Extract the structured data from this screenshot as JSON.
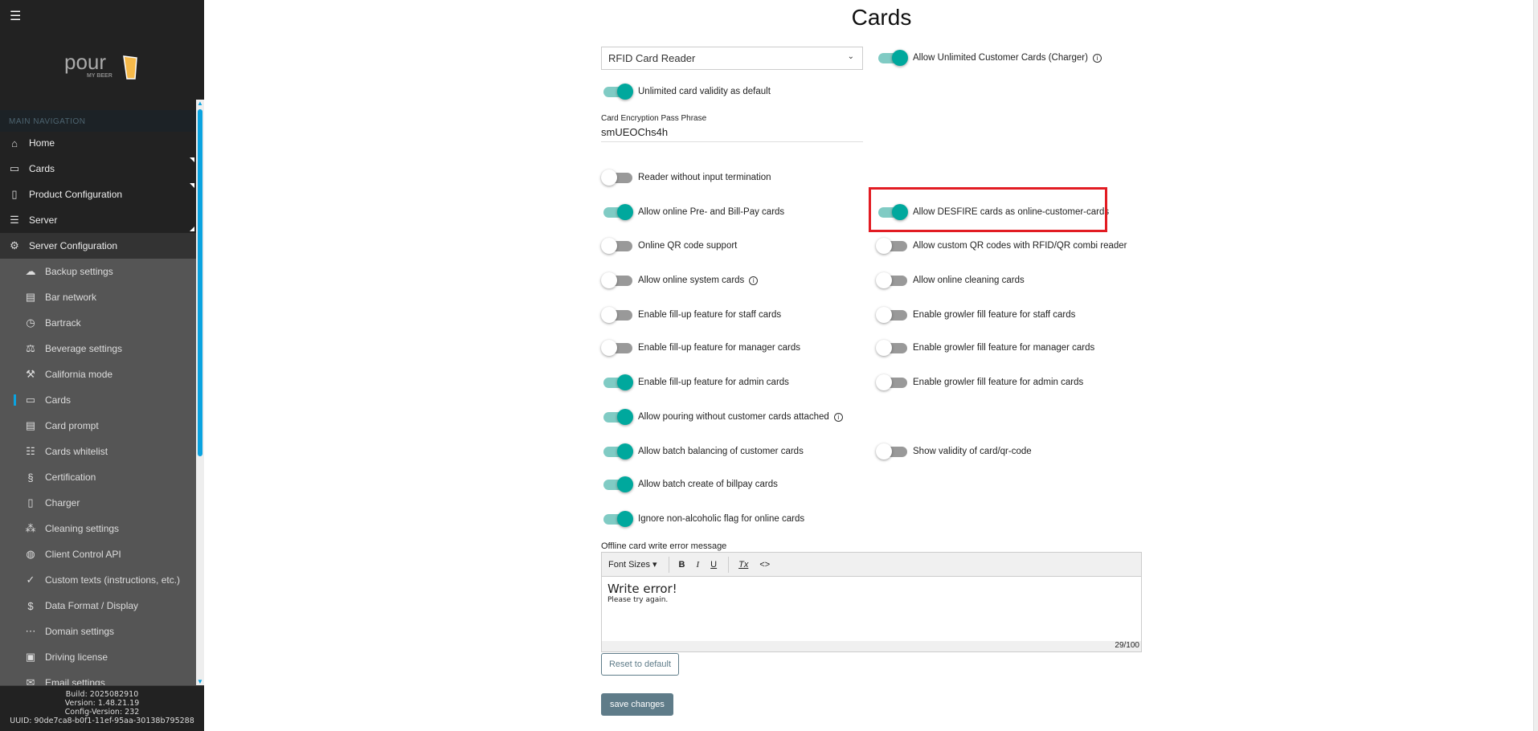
{
  "sidebar": {
    "menu_icon": "hamburger-icon",
    "logo_text": "pour MY BEER",
    "nav_header": "MAIN NAVIGATION",
    "items": [
      {
        "label": "Home",
        "icon": "⌂",
        "type": "top"
      },
      {
        "label": "Cards",
        "icon": "▭",
        "type": "top",
        "tri": "down"
      },
      {
        "label": "Product Configuration",
        "icon": "▯",
        "type": "top",
        "tri": "down"
      },
      {
        "label": "Server",
        "icon": "☰",
        "type": "top",
        "tri": "up"
      },
      {
        "label": "Server Configuration",
        "icon": "⚙",
        "type": "open"
      },
      {
        "label": "Backup settings",
        "icon": "☁",
        "type": "sub"
      },
      {
        "label": "Bar network",
        "icon": "▤",
        "type": "sub"
      },
      {
        "label": "Bartrack",
        "icon": "◷",
        "type": "sub"
      },
      {
        "label": "Beverage settings",
        "icon": "⚖",
        "type": "sub"
      },
      {
        "label": "California mode",
        "icon": "⚒",
        "type": "sub"
      },
      {
        "label": "Cards",
        "icon": "▭",
        "type": "sub",
        "active": true
      },
      {
        "label": "Card prompt",
        "icon": "▤",
        "type": "sub"
      },
      {
        "label": "Cards whitelist",
        "icon": "☷",
        "type": "sub"
      },
      {
        "label": "Certification",
        "icon": "§",
        "type": "sub"
      },
      {
        "label": "Charger",
        "icon": "▯",
        "type": "sub"
      },
      {
        "label": "Cleaning settings",
        "icon": "⁂",
        "type": "sub"
      },
      {
        "label": "Client Control API",
        "icon": "◍",
        "type": "sub"
      },
      {
        "label": "Custom texts (instructions, etc.)",
        "icon": "✓",
        "type": "sub"
      },
      {
        "label": "Data Format / Display",
        "icon": "$",
        "type": "sub"
      },
      {
        "label": "Domain settings",
        "icon": "⋯",
        "type": "sub"
      },
      {
        "label": "Driving license",
        "icon": "▣",
        "type": "sub"
      },
      {
        "label": "Email settings",
        "icon": "✉",
        "type": "sub"
      }
    ],
    "footer": {
      "build": "Build: 2025082910",
      "version": "Version: 1.48.21.19",
      "config": "Config-Version: 232",
      "uuid": "UUID: 90de7ca8-b0f1-11ef-95aa-30138b795288"
    }
  },
  "main": {
    "title": "Cards",
    "reader_select": "RFID Card Reader",
    "passphrase_label": "Card Encryption Pass Phrase",
    "passphrase_value": "smUEOChs4h",
    "toggles": [
      {
        "label": "Allow Unlimited Customer Cards (Charger)",
        "on": true,
        "col": 1,
        "row": 0,
        "info": true
      },
      {
        "label": "Unlimited card validity as default",
        "on": true,
        "col": 0,
        "row": 1
      },
      {
        "label": "Reader without input termination",
        "on": false,
        "col": 0,
        "row": 2
      },
      {
        "label": "Allow online Pre- and Bill-Pay cards",
        "on": true,
        "col": 0,
        "row": 3
      },
      {
        "label": "Allow DESFIRE cards as online-customer-cards",
        "on": true,
        "col": 1,
        "row": 3,
        "highlight": true
      },
      {
        "label": "Online QR code support",
        "on": false,
        "col": 0,
        "row": 4
      },
      {
        "label": "Allow custom QR codes with RFID/QR combi reader",
        "on": false,
        "col": 1,
        "row": 4
      },
      {
        "label": "Allow online system cards",
        "on": false,
        "col": 0,
        "row": 5,
        "info": true
      },
      {
        "label": "Allow online cleaning cards",
        "on": false,
        "col": 1,
        "row": 5
      },
      {
        "label": "Enable fill-up feature for staff cards",
        "on": false,
        "col": 0,
        "row": 6
      },
      {
        "label": "Enable growler fill feature for staff cards",
        "on": false,
        "col": 1,
        "row": 6
      },
      {
        "label": "Enable fill-up feature for manager cards",
        "on": false,
        "col": 0,
        "row": 7
      },
      {
        "label": "Enable growler fill feature for manager cards",
        "on": false,
        "col": 1,
        "row": 7
      },
      {
        "label": "Enable fill-up feature for admin cards",
        "on": true,
        "col": 0,
        "row": 8
      },
      {
        "label": "Enable growler fill feature for admin cards",
        "on": false,
        "col": 1,
        "row": 8
      },
      {
        "label": "Allow pouring without customer cards attached",
        "on": true,
        "col": 0,
        "row": 9,
        "info": true
      },
      {
        "label": "Allow batch balancing of customer cards",
        "on": true,
        "col": 0,
        "row": 10
      },
      {
        "label": "Show validity of card/qr-code",
        "on": false,
        "col": 1,
        "row": 10
      },
      {
        "label": "Allow batch create of billpay cards",
        "on": true,
        "col": 0,
        "row": 11
      },
      {
        "label": "Ignore non-alcoholic flag for online cards",
        "on": true,
        "col": 0,
        "row": 12
      }
    ],
    "editor": {
      "label": "Offline card write error message",
      "font_sizes": "Font Sizes ▾",
      "bold": "B",
      "italic": "I",
      "underline": "U",
      "clear": "Tx",
      "code": "<>",
      "line1": "Write error!",
      "line2": "Please try again.",
      "counter": "29/100"
    },
    "reset_label": "Reset to default",
    "save_label": "save changes",
    "colors": {
      "accent": "#00a89d",
      "highlight": "#e21c23",
      "button": "#5f7c89"
    }
  }
}
